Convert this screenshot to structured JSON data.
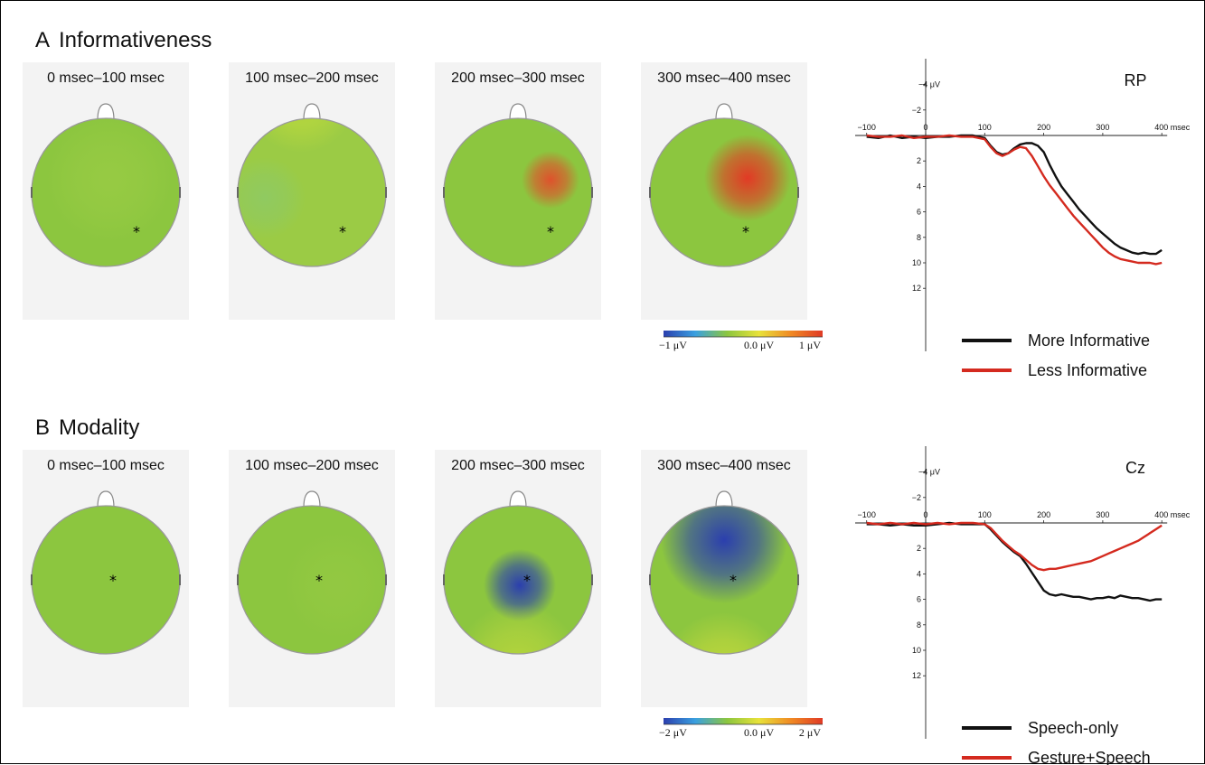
{
  "panels": [
    {
      "letter": "A",
      "title": "Informativeness",
      "time_windows": [
        "0 msec–100 msec",
        "100 msec–200 msec",
        "200 msec–300 msec",
        "300 msec–400 msec"
      ],
      "maps": [
        {
          "base": "#8cc63f",
          "spots": [
            {
              "color": "#a7d14a",
              "level": 0.4
            }
          ]
        },
        {
          "base": "#9bcb45",
          "spots": [
            {
              "color": "#d9e634",
              "level": 0.5
            },
            {
              "color": "#7fc98a",
              "level": 0.4
            }
          ]
        },
        {
          "base": "#8cc63f",
          "spots": [
            {
              "color": "#e8452a",
              "level": 0.9
            },
            {
              "color": "#6fc6d8",
              "level": 0.5
            }
          ]
        },
        {
          "base": "#8cc63f",
          "spots": [
            {
              "color": "#e23a25",
              "level": 1.0
            },
            {
              "color": "#6fc6d8",
              "level": 0.5
            }
          ]
        }
      ],
      "colorbar": {
        "min_label": "−1 μV",
        "mid_label": "0.0 μV",
        "max_label": "1 μV",
        "colors": [
          "#2b3fae",
          "#3aa0e0",
          "#8cc63f",
          "#e8e23a",
          "#f08a24",
          "#e03a25"
        ]
      },
      "erp": {
        "electrode": "RP",
        "x_ticks": [
          "−100",
          "0",
          "100",
          "200",
          "300",
          "400 msec"
        ],
        "x_tick_values": [
          -100,
          0,
          100,
          200,
          300,
          400
        ],
        "y_ticks": [
          "−4 μV",
          "−2",
          "",
          "2",
          "4",
          "6",
          "8",
          "10",
          "12"
        ],
        "y_tick_values": [
          -4,
          -2,
          0,
          2,
          4,
          6,
          8,
          10,
          12
        ],
        "series": [
          {
            "name": "More Informative",
            "color": "#111111",
            "x": [
              -100,
              -80,
              -60,
              -40,
              -20,
              0,
              20,
              40,
              60,
              80,
              100,
              110,
              120,
              130,
              140,
              150,
              160,
              170,
              180,
              190,
              200,
              210,
              220,
              230,
              240,
              250,
              260,
              270,
              280,
              290,
              300,
              310,
              320,
              330,
              340,
              350,
              360,
              370,
              380,
              390,
              400
            ],
            "y": [
              0.1,
              0.2,
              0.0,
              0.2,
              0.1,
              0.2,
              0.1,
              0.1,
              0.0,
              0.0,
              0.2,
              0.8,
              1.3,
              1.5,
              1.4,
              1.0,
              0.7,
              0.6,
              0.6,
              0.8,
              1.3,
              2.3,
              3.2,
              4.0,
              4.6,
              5.2,
              5.8,
              6.3,
              6.8,
              7.3,
              7.7,
              8.1,
              8.5,
              8.8,
              9.0,
              9.2,
              9.3,
              9.2,
              9.3,
              9.3,
              9.0
            ]
          },
          {
            "name": "Less Informative",
            "color": "#d42a1f",
            "x": [
              -100,
              -80,
              -60,
              -40,
              -20,
              0,
              20,
              40,
              60,
              80,
              100,
              110,
              120,
              130,
              140,
              150,
              160,
              170,
              180,
              190,
              200,
              210,
              220,
              230,
              240,
              250,
              260,
              270,
              280,
              290,
              300,
              310,
              320,
              330,
              340,
              350,
              360,
              370,
              380,
              390,
              400
            ],
            "y": [
              0.0,
              0.1,
              0.1,
              0.0,
              0.2,
              0.1,
              0.1,
              0.0,
              0.1,
              0.1,
              0.3,
              0.9,
              1.4,
              1.6,
              1.4,
              1.1,
              0.9,
              1.0,
              1.6,
              2.4,
              3.2,
              3.9,
              4.5,
              5.1,
              5.7,
              6.3,
              6.8,
              7.3,
              7.8,
              8.3,
              8.8,
              9.2,
              9.5,
              9.7,
              9.8,
              9.9,
              10.0,
              10.0,
              10.0,
              10.1,
              10.0
            ]
          }
        ]
      }
    },
    {
      "letter": "B",
      "title": "Modality",
      "time_windows": [
        "0 msec–100 msec",
        "100 msec–200 msec",
        "200 msec–300 msec",
        "300 msec–400 msec"
      ],
      "maps": [
        {
          "base": "#8cc63f",
          "spots": []
        },
        {
          "base": "#8cc63f",
          "spots": [
            {
              "color": "#a2ce48",
              "level": 0.3
            }
          ]
        },
        {
          "base": "#8cc63f",
          "spots": [
            {
              "color": "#2b3fae",
              "level": 1.0
            },
            {
              "color": "#dfe33a",
              "level": 0.5
            }
          ]
        },
        {
          "base": "#8cc63f",
          "spots": [
            {
              "color": "#2b3fae",
              "level": 1.0
            },
            {
              "color": "#e4e33a",
              "level": 0.6
            }
          ]
        }
      ],
      "colorbar": {
        "min_label": "−2 μV",
        "mid_label": "0.0 μV",
        "max_label": "2 μV",
        "colors": [
          "#2b3fae",
          "#3aa0e0",
          "#8cc63f",
          "#e8e23a",
          "#f08a24",
          "#e03a25"
        ]
      },
      "erp": {
        "electrode": "Cz",
        "x_ticks": [
          "−100",
          "0",
          "100",
          "200",
          "300",
          "400 msec"
        ],
        "x_tick_values": [
          -100,
          0,
          100,
          200,
          300,
          400
        ],
        "y_ticks": [
          "−4 μV",
          "−2",
          "",
          "2",
          "4",
          "6",
          "8",
          "10",
          "12"
        ],
        "y_tick_values": [
          -4,
          -2,
          0,
          2,
          4,
          6,
          8,
          10,
          12
        ],
        "series": [
          {
            "name": "Speech-only",
            "color": "#111111",
            "x": [
              -100,
              -80,
              -60,
              -40,
              -20,
              0,
              20,
              40,
              60,
              80,
              100,
              110,
              120,
              130,
              140,
              150,
              160,
              170,
              180,
              190,
              200,
              210,
              220,
              230,
              240,
              250,
              260,
              270,
              280,
              290,
              300,
              310,
              320,
              330,
              340,
              350,
              360,
              370,
              380,
              390,
              400
            ],
            "y": [
              0.1,
              0.1,
              0.2,
              0.1,
              0.2,
              0.2,
              0.1,
              0.0,
              0.1,
              0.1,
              0.1,
              0.5,
              1.0,
              1.5,
              1.9,
              2.3,
              2.6,
              3.2,
              3.9,
              4.6,
              5.3,
              5.6,
              5.7,
              5.6,
              5.7,
              5.8,
              5.8,
              5.9,
              6.0,
              5.9,
              5.9,
              5.8,
              5.9,
              5.7,
              5.8,
              5.9,
              5.9,
              6.0,
              6.1,
              6.0,
              6.0
            ]
          },
          {
            "name": "Gesture+Speech",
            "color": "#d42a1f",
            "x": [
              -100,
              -80,
              -60,
              -40,
              -20,
              0,
              20,
              40,
              60,
              80,
              100,
              110,
              120,
              130,
              140,
              150,
              160,
              170,
              180,
              190,
              200,
              210,
              220,
              230,
              240,
              250,
              260,
              270,
              280,
              290,
              300,
              310,
              320,
              330,
              340,
              350,
              360,
              370,
              380,
              390,
              400
            ],
            "y": [
              0.0,
              0.1,
              0.0,
              0.1,
              0.0,
              0.1,
              0.0,
              0.1,
              0.0,
              0.0,
              0.1,
              0.4,
              0.9,
              1.4,
              1.8,
              2.2,
              2.5,
              2.9,
              3.3,
              3.6,
              3.7,
              3.6,
              3.6,
              3.5,
              3.4,
              3.3,
              3.2,
              3.1,
              3.0,
              2.8,
              2.6,
              2.4,
              2.2,
              2.0,
              1.8,
              1.6,
              1.4,
              1.1,
              0.8,
              0.5,
              0.2
            ]
          }
        ]
      }
    }
  ]
}
